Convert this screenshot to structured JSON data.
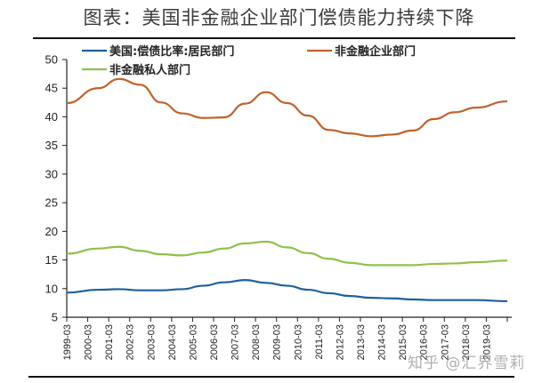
{
  "title": "图表：美国非金融企业部门偿债能力持续下降",
  "watermark": "知乎 @汇界雪莉",
  "legend": [
    {
      "label": "美国:偿债比率:居民部门",
      "color": "#1f5f9e"
    },
    {
      "label": "非金融企业部门",
      "color": "#c0622a"
    },
    {
      "label": "非金融私人部门",
      "color": "#8fc04a"
    }
  ],
  "chart_data": {
    "type": "line",
    "title": "图表：美国非金融企业部门偿债能力持续下降",
    "xlabel": "",
    "ylabel": "",
    "ylim": [
      5,
      50
    ],
    "yticks": [
      5,
      10,
      15,
      20,
      25,
      30,
      35,
      40,
      45,
      50
    ],
    "grid": false,
    "legend_position": "top",
    "x": [
      "1999-03",
      "2000-03",
      "2001-03",
      "2002-03",
      "2003-03",
      "2004-03",
      "2005-03",
      "2006-03",
      "2007-03",
      "2008-03",
      "2009-03",
      "2010-03",
      "2011-03",
      "2012-03",
      "2013-03",
      "2014-03",
      "2015-03",
      "2016-03",
      "2017-03",
      "2018-03",
      "2019-03"
    ],
    "series": [
      {
        "name": "美国:偿债比率:居民部门",
        "color": "#1f5f9e",
        "values": [
          9.3,
          9.8,
          9.9,
          9.7,
          9.7,
          9.9,
          10.5,
          11.1,
          11.5,
          11.0,
          10.5,
          9.8,
          9.2,
          8.7,
          8.4,
          8.3,
          8.1,
          8.0,
          8.0,
          8.0,
          7.8
        ]
      },
      {
        "name": "非金融企业部门",
        "color": "#c0622a",
        "values": [
          42.4,
          45.0,
          46.6,
          45.6,
          42.5,
          40.6,
          39.8,
          39.9,
          42.3,
          44.3,
          42.4,
          40.2,
          37.7,
          37.1,
          36.6,
          36.9,
          37.6,
          39.6,
          40.8,
          41.6,
          42.7
        ]
      },
      {
        "name": "非金融私人部门",
        "color": "#8fc04a",
        "values": [
          16.1,
          17.0,
          17.3,
          16.6,
          16.0,
          15.8,
          16.3,
          17.0,
          17.9,
          18.2,
          17.2,
          16.2,
          15.2,
          14.5,
          14.1,
          14.1,
          14.1,
          14.3,
          14.4,
          14.6,
          14.9
        ]
      }
    ]
  }
}
